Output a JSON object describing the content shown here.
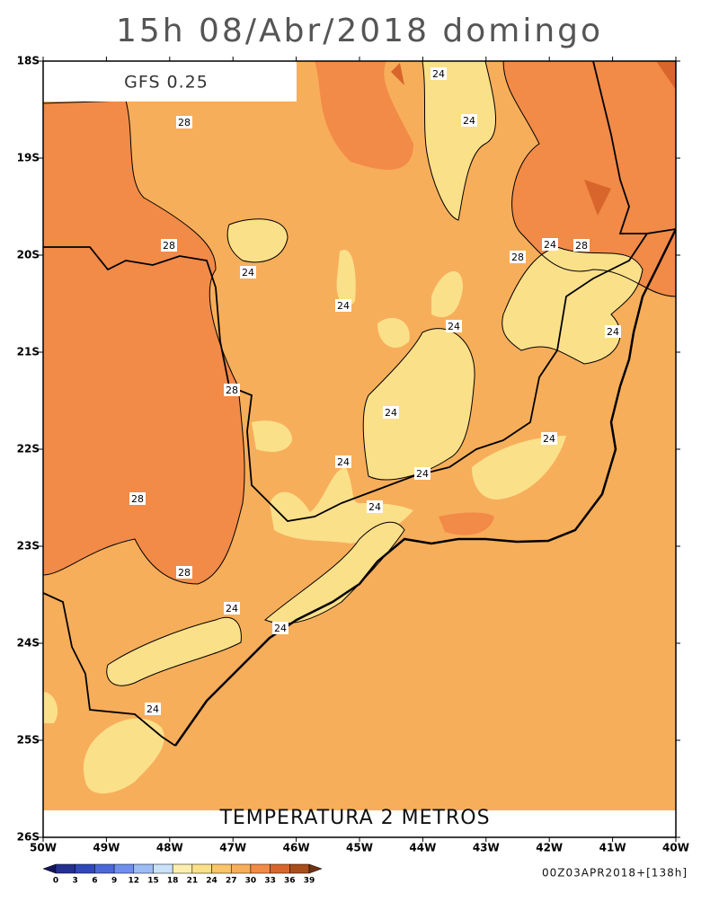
{
  "title": "15h 08/Abr/2018 domingo",
  "model": "GFS 0.25",
  "subtitle": "TEMPERATURA 2 METROS",
  "run": "00Z03APR2018+[138h]",
  "lat_labels": [
    "18S",
    "19S",
    "20S",
    "21S",
    "22S",
    "23S",
    "24S",
    "25S",
    "26S"
  ],
  "lon_labels": [
    "50W",
    "49W",
    "48W",
    "47W",
    "46W",
    "45W",
    "44W",
    "43W",
    "42W",
    "41W",
    "40W"
  ],
  "contour_labels": [
    "24",
    "24",
    "28",
    "28",
    "24",
    "24",
    "24",
    "28",
    "24",
    "28",
    "24",
    "28",
    "24",
    "24",
    "24",
    "24",
    "28",
    "24",
    "28",
    "24",
    "24",
    "24"
  ],
  "colorbar": {
    "levels": [
      0,
      3,
      6,
      9,
      12,
      15,
      18,
      21,
      24,
      27,
      30,
      33,
      36,
      39
    ],
    "colors": [
      "#15155e",
      "#23308f",
      "#3148b8",
      "#4a68d8",
      "#6e90ec",
      "#9cbcf4",
      "#c9e2fa",
      "#fbeeb0",
      "#fbe08a",
      "#f9c56a",
      "#f7ae5a",
      "#f28a48",
      "#d8662c",
      "#a84e1c",
      "#6e3210"
    ]
  }
}
